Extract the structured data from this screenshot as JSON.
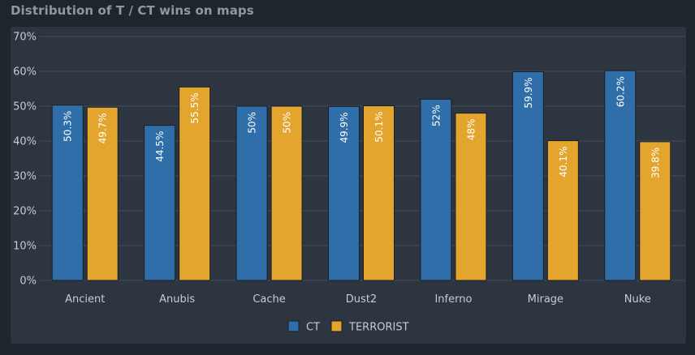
{
  "title": "Distribution of T / CT wins on maps",
  "colors": {
    "ct": "#2f6ea8",
    "terrorist": "#e3a52e",
    "grid": "#45505c",
    "panel": "#2c3540",
    "background": "#1f252c"
  },
  "chart_data": {
    "type": "bar",
    "title": "Distribution of T / CT wins on maps",
    "xlabel": "",
    "ylabel": "",
    "ylim": [
      0,
      70
    ],
    "yticks": [
      0,
      10,
      20,
      30,
      40,
      50,
      60,
      70
    ],
    "ytick_labels": [
      "0%",
      "10%",
      "20%",
      "30%",
      "40%",
      "50%",
      "60%",
      "70%"
    ],
    "grid": true,
    "legend_position": "bottom-center",
    "categories": [
      "Ancient",
      "Anubis",
      "Cache",
      "Dust2",
      "Inferno",
      "Mirage",
      "Nuke"
    ],
    "series": [
      {
        "name": "CT",
        "color": "#2f6ea8",
        "values": [
          50.3,
          44.5,
          50,
          49.9,
          52,
          59.9,
          60.2
        ],
        "labels": [
          "50.3%",
          "44.5%",
          "50%",
          "49.9%",
          "52%",
          "59.9%",
          "60.2%"
        ]
      },
      {
        "name": "TERRORIST",
        "color": "#e3a52e",
        "values": [
          49.7,
          55.5,
          50,
          50.1,
          48,
          40.1,
          39.8
        ],
        "labels": [
          "49.7%",
          "55.5%",
          "50%",
          "50.1%",
          "48%",
          "40.1%",
          "39.8%"
        ]
      }
    ]
  }
}
